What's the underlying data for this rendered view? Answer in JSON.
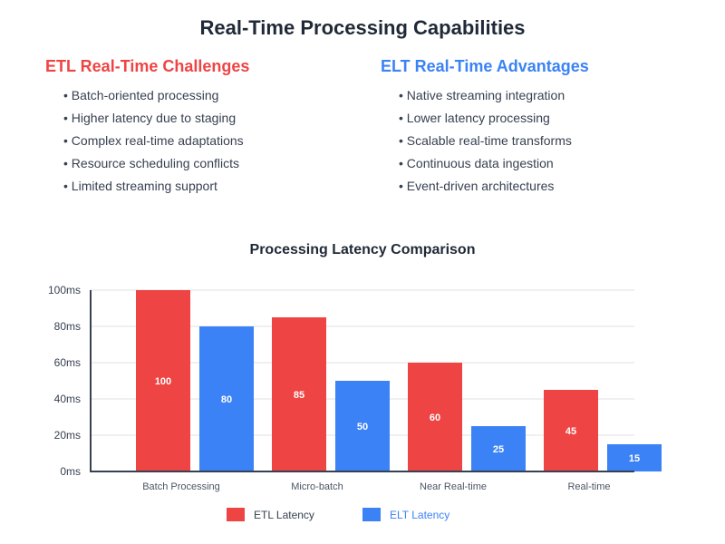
{
  "page": {
    "title": "Real-Time Processing Capabilities"
  },
  "etl_column": {
    "heading": "ETL Real-Time Challenges",
    "color": "#ef4444",
    "items": [
      "• Batch-oriented processing",
      "• Higher latency due to staging",
      "• Complex real-time adaptations",
      "• Resource scheduling conflicts",
      "• Limited streaming support"
    ]
  },
  "elt_column": {
    "heading": "ELT Real-Time Advantages",
    "color": "#3b82f6",
    "items": [
      "• Native streaming integration",
      "• Lower latency processing",
      "• Scalable real-time transforms",
      "• Continuous data ingestion",
      "• Event-driven architectures"
    ]
  },
  "chart_data": {
    "type": "bar",
    "title": "Processing Latency Comparison",
    "xlabel": "",
    "ylabel": "",
    "categories": [
      "Batch Processing",
      "Micro-batch",
      "Near Real-time",
      "Real-time"
    ],
    "series": [
      {
        "name": "ETL Latency",
        "color": "#ef4444",
        "values": [
          100,
          85,
          60,
          45
        ]
      },
      {
        "name": "ELT Latency",
        "color": "#3b82f6",
        "values": [
          80,
          50,
          25,
          15
        ]
      }
    ],
    "ylim": [
      0,
      100
    ],
    "yticks": [
      0,
      20,
      40,
      60,
      80,
      100
    ],
    "ytick_labels": [
      "0ms",
      "20ms",
      "40ms",
      "60ms",
      "80ms",
      "100ms"
    ],
    "grid": true,
    "data_labels": true,
    "legend": {
      "placement": "bottom-center",
      "entries": [
        "ETL Latency",
        "ELT Latency"
      ]
    }
  }
}
